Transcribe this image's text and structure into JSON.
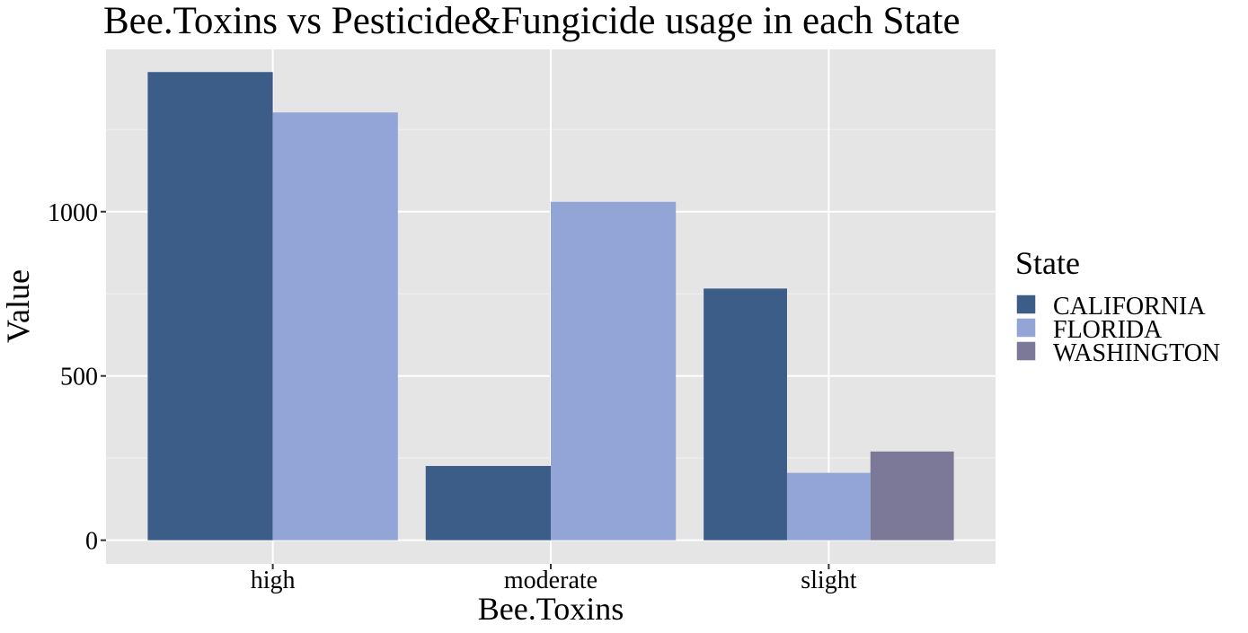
{
  "chart_data": {
    "type": "bar",
    "title": "Bee.Toxins vs Pesticide&Fungicide usage in each State",
    "xlabel": "Bee.Toxins",
    "ylabel": "Value",
    "categories": [
      "high",
      "moderate",
      "slight"
    ],
    "series": [
      {
        "name": "CALIFORNIA",
        "color": "#3d5d89",
        "values": [
          1425,
          226,
          766
        ]
      },
      {
        "name": "FLORIDA",
        "color": "#93a5d6",
        "values": [
          1302,
          1030,
          205
        ]
      },
      {
        "name": "WASHINGTON",
        "color": "#7b7898",
        "values": [
          null,
          null,
          270
        ]
      }
    ],
    "yticks": [
      0,
      500,
      1000
    ],
    "ylim": [
      -72,
      1494
    ],
    "grid": true,
    "background_color": "#e5e5e5",
    "legend": {
      "title": "State",
      "position": "right"
    }
  }
}
